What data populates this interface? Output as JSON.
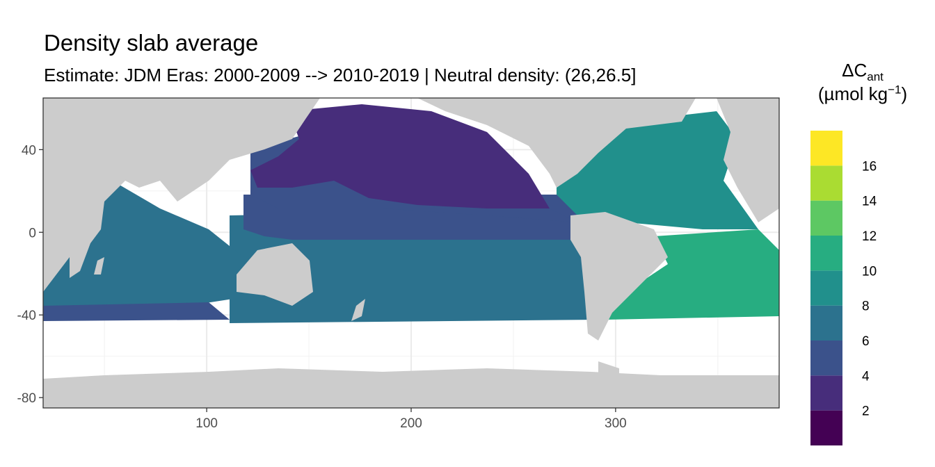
{
  "chart_data": {
    "type": "heatmap",
    "title": "Density slab average",
    "subtitle": "Estimate: JDM Eras: 2000-2009 --> 2010-2019 | Neutral density: (26,26.5]",
    "legend": {
      "title_main": "ΔC",
      "title_sub": "ant",
      "unit_open": "(µmol kg",
      "unit_sup": "−1",
      "unit_close": ")",
      "placement": "right",
      "breaks": [
        2,
        4,
        6,
        8,
        10,
        12,
        14,
        16
      ],
      "bins": [
        {
          "range": [
            0,
            2
          ],
          "color": "#440154"
        },
        {
          "range": [
            2,
            4
          ],
          "color": "#472D7B"
        },
        {
          "range": [
            4,
            6
          ],
          "color": "#3B528B"
        },
        {
          "range": [
            6,
            8
          ],
          "color": "#2C728E"
        },
        {
          "range": [
            8,
            10
          ],
          "color": "#21908C"
        },
        {
          "range": [
            10,
            12
          ],
          "color": "#27AD81"
        },
        {
          "range": [
            12,
            14
          ],
          "color": "#5DC863"
        },
        {
          "range": [
            14,
            16
          ],
          "color": "#AADC32"
        },
        {
          "range": [
            16,
            18
          ],
          "color": "#FDE725"
        }
      ]
    },
    "x_axis": {
      "ticks": [
        100,
        200,
        300
      ],
      "lim": [
        20,
        380
      ]
    },
    "y_axis": {
      "ticks": [
        40,
        0,
        -40,
        -80
      ],
      "lim": [
        -85,
        65
      ]
    },
    "grid": true,
    "land_color": "#CCCCCC",
    "ocean_regions": [
      {
        "name": "north-pacific-subpolar",
        "value": 2
      },
      {
        "name": "north-pacific-subtropical",
        "value": 4
      },
      {
        "name": "equatorial-pacific",
        "value": 5
      },
      {
        "name": "south-pacific",
        "value": 7
      },
      {
        "name": "indian-ocean",
        "value": 7
      },
      {
        "name": "north-atlantic",
        "value": 9
      },
      {
        "name": "south-atlantic",
        "value": 11
      },
      {
        "name": "southern-ocean-band",
        "value": 5
      }
    ]
  }
}
